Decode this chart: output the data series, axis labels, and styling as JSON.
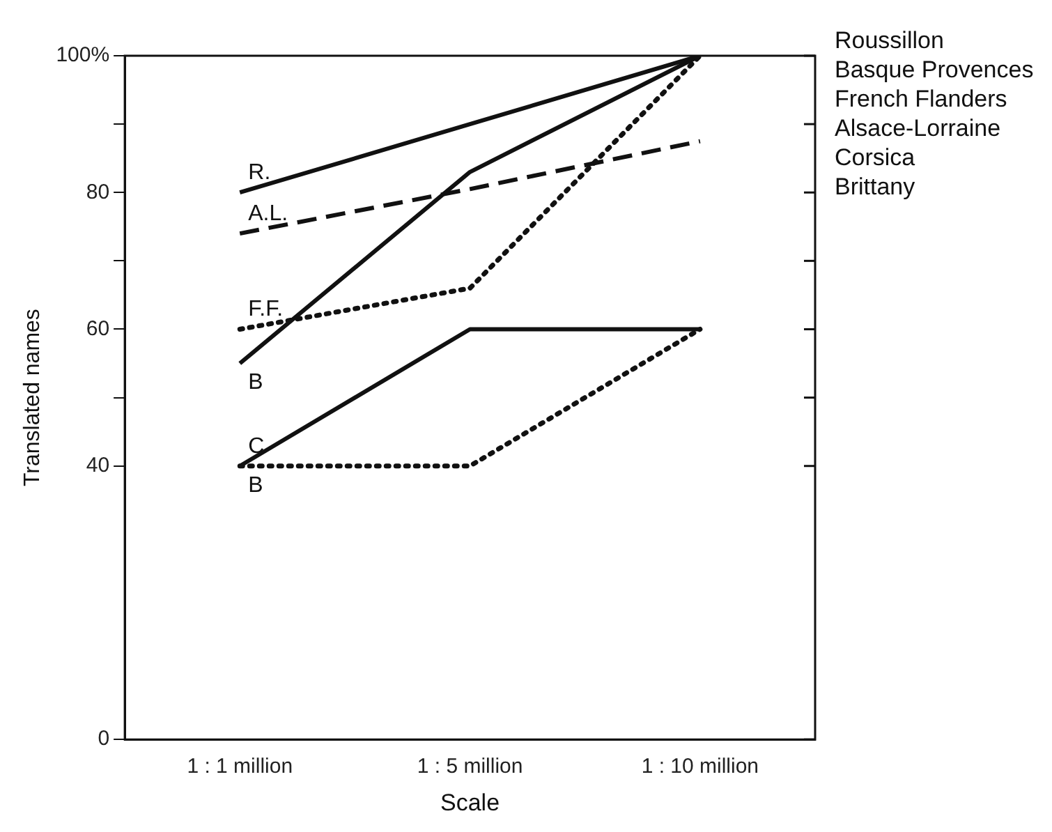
{
  "chart_data": {
    "type": "line",
    "xlabel": "Scale",
    "ylabel": "Translated names",
    "categories": [
      "1 : 1 million",
      "1 : 5 million",
      "1 : 10 million"
    ],
    "ylim": [
      0,
      100
    ],
    "yticks": [
      0,
      40,
      {
        "value": 50,
        "label": null
      },
      60,
      {
        "value": 70,
        "label": null
      },
      80,
      {
        "value": 90,
        "label": null
      },
      {
        "value": 100,
        "label": "100%"
      }
    ],
    "grid": false,
    "legend": false,
    "marker": "none",
    "series": [
      {
        "name": "R.",
        "color": "#111111",
        "line_style": "solid",
        "values": [
          80,
          90,
          100
        ]
      },
      {
        "name": "A.L.",
        "color": "#111111",
        "line_style": "dashed",
        "values": [
          74,
          80.5,
          87.5
        ]
      },
      {
        "name": "F.F.",
        "color": "#111111",
        "line_style": "dotted",
        "values": [
          60,
          66,
          100
        ]
      },
      {
        "name": "B",
        "color": "#111111",
        "line_style": "solid",
        "values": [
          55,
          83,
          100
        ]
      },
      {
        "name": "C",
        "color": "#111111",
        "line_style": "solid",
        "values": [
          40,
          60,
          60
        ]
      },
      {
        "name": "B",
        "color": "#111111",
        "line_style": "dotted",
        "values": [
          40,
          40,
          60
        ]
      }
    ],
    "annotations": [
      "Roussillon",
      "Basque Provences",
      "French Flanders",
      "Alsace-Lorraine",
      "Corsica",
      "Brittany"
    ]
  }
}
